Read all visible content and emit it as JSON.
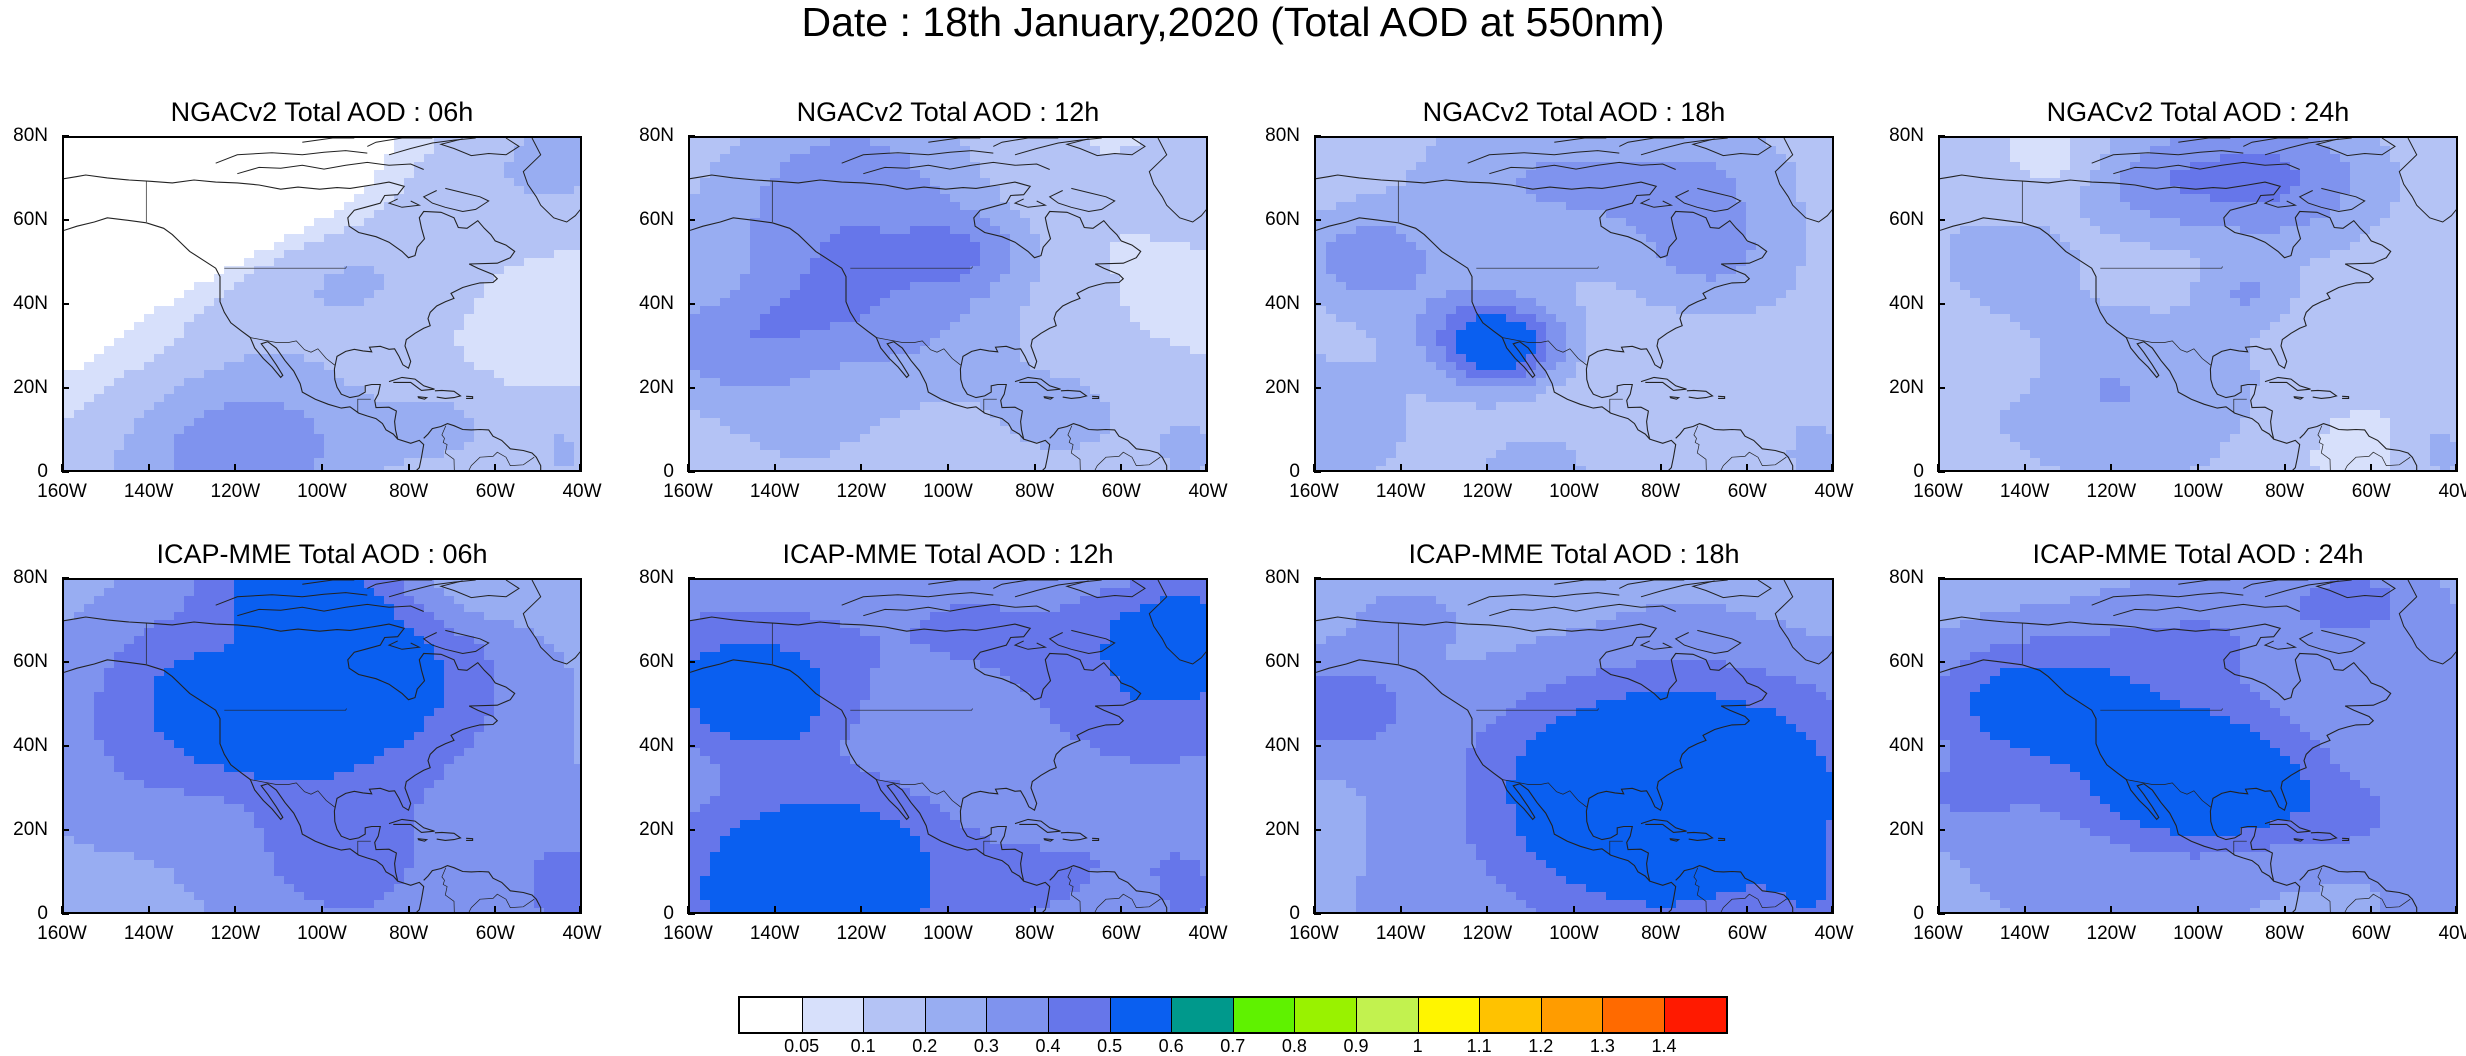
{
  "figure": {
    "title": "Date : 18th January,2020 (Total AOD at 550nm)"
  },
  "panels": [
    {
      "title": "NGACv2 Total AOD : 06h",
      "seed": 11,
      "level": 0.0
    },
    {
      "title": "NGACv2 Total AOD : 12h",
      "seed": 23,
      "level": 0.02
    },
    {
      "title": "NGACv2 Total AOD : 18h",
      "seed": 37,
      "level": 0.03
    },
    {
      "title": "NGACv2 Total AOD : 24h",
      "seed": 49,
      "level": 0.04
    },
    {
      "title": "ICAP-MME Total AOD : 06h",
      "seed": 57,
      "level": 0.16
    },
    {
      "title": "ICAP-MME Total AOD : 12h",
      "seed": 61,
      "level": 0.17
    },
    {
      "title": "ICAP-MME Total AOD : 18h",
      "seed": 73,
      "level": 0.16
    },
    {
      "title": "ICAP-MME Total AOD : 24h",
      "seed": 89,
      "level": 0.15
    }
  ],
  "axes": {
    "lat_ticks": [
      "80N",
      "60N",
      "40N",
      "20N",
      "0"
    ],
    "lon_ticks": [
      "160W",
      "140W",
      "120W",
      "100W",
      "80W",
      "60W",
      "40W"
    ],
    "lat_range": [
      0,
      80
    ],
    "lon_range": [
      -160,
      -40
    ]
  },
  "colorbar": {
    "colors": [
      "#ffffff",
      "#d7e0fb",
      "#b4c3f5",
      "#98adf2",
      "#7f93ee",
      "#6676ea",
      "#0a5ff0",
      "#00998c",
      "#5ff200",
      "#99f200",
      "#c2f24f",
      "#fff500",
      "#ffc200",
      "#ff9c00",
      "#ff6a00",
      "#ff1a00"
    ],
    "labels": [
      "0.05",
      "0.1",
      "0.2",
      "0.3",
      "0.4",
      "0.5",
      "0.6",
      "0.7",
      "0.8",
      "0.9",
      "1",
      "1.1",
      "1.2",
      "1.3",
      "1.4"
    ]
  }
}
